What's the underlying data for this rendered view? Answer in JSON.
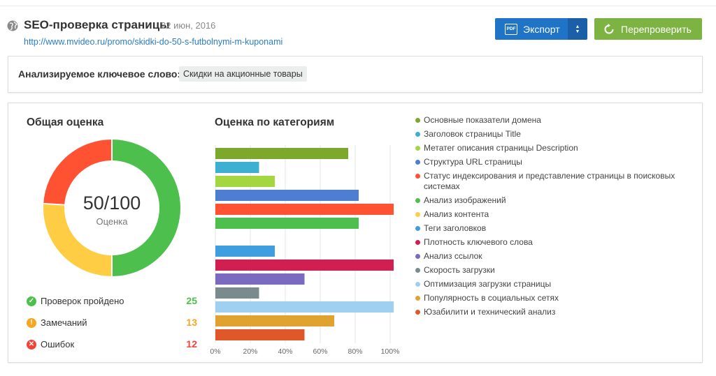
{
  "header": {
    "title": "SEO-проверка страницы",
    "date": "22 июн, 2016",
    "url": "http://www.mvideo.ru/promo/skidki-do-50-s-futbolnymi-m-kuponami",
    "export_label": "Экспорт",
    "pdf_icon_text": "PDF",
    "recheck_label": "Перепроверить",
    "colors": {
      "export": "#1f74c8",
      "recheck": "#7cb342",
      "link": "#2a7cc7"
    }
  },
  "keyword": {
    "label": "Анализируемое ключевое слово:",
    "value": "Скидки на акционные товары"
  },
  "overall": {
    "title": "Общая оценка",
    "score": "50/100",
    "score_label": "Оценка",
    "donut_segments": [
      {
        "name": "passed",
        "value": 25,
        "color": "#4cbf4c"
      },
      {
        "name": "warnings",
        "value": 13,
        "color": "#ffcd44"
      },
      {
        "name": "errors",
        "value": 12,
        "color": "#ff5233"
      }
    ],
    "stats": [
      {
        "icon": "check-circle-icon",
        "label": "Проверок пройдено",
        "value": "25",
        "color": "#4cbf4c",
        "glyph": "✓"
      },
      {
        "icon": "warning-circle-icon",
        "label": "Замечаний",
        "value": "13",
        "color": "#f5a623",
        "glyph": "!"
      },
      {
        "icon": "error-circle-icon",
        "label": "Ошибок",
        "value": "12",
        "color": "#f44336",
        "glyph": "✕"
      }
    ]
  },
  "categories": {
    "title": "Оценка по категориям"
  },
  "chart_data": {
    "type": "bar",
    "orientation": "horizontal",
    "x_ticks": [
      "0%",
      "20%",
      "40%",
      "60%",
      "80%",
      "100%"
    ],
    "xlim": [
      0,
      100
    ],
    "grid": true,
    "legend_position": "right",
    "series": [
      {
        "name": "Основные показатели домена",
        "value": 76,
        "color": "#7ca82b"
      },
      {
        "name": "Заголовок страницы Title",
        "value": 25,
        "color": "#3db0d2"
      },
      {
        "name": "Метатег описания страницы Description",
        "value": 34,
        "color": "#a4d63f"
      },
      {
        "name": "Структура URL страницы",
        "value": 82,
        "color": "#4d7ed1"
      },
      {
        "name": "Статус индексирования и представление страницы в поисковых системах",
        "value": 102,
        "color": "#ff5233"
      },
      {
        "name": "Анализ изображений",
        "value": 82,
        "color": "#4cbf4c"
      },
      {
        "name": "Анализ контента",
        "value": 0,
        "color": "#ffcd44"
      },
      {
        "name": "Теги заголовков",
        "value": 34,
        "color": "#3f9ee0"
      },
      {
        "name": "Плотность ключевого слова",
        "value": 102,
        "color": "#d01f50"
      },
      {
        "name": "Анализ ссылок",
        "value": 51,
        "color": "#7a6bc0"
      },
      {
        "name": "Скорость загрузки",
        "value": 25,
        "color": "#7a8b8e"
      },
      {
        "name": "Оптимизация загрузки страницы",
        "value": 102,
        "color": "#9fd0f2"
      },
      {
        "name": "Популярность в социальных сетях",
        "value": 68,
        "color": "#e0a330"
      },
      {
        "name": "Юзабилити и технический анализ",
        "value": 51,
        "color": "#e0572a"
      }
    ]
  }
}
